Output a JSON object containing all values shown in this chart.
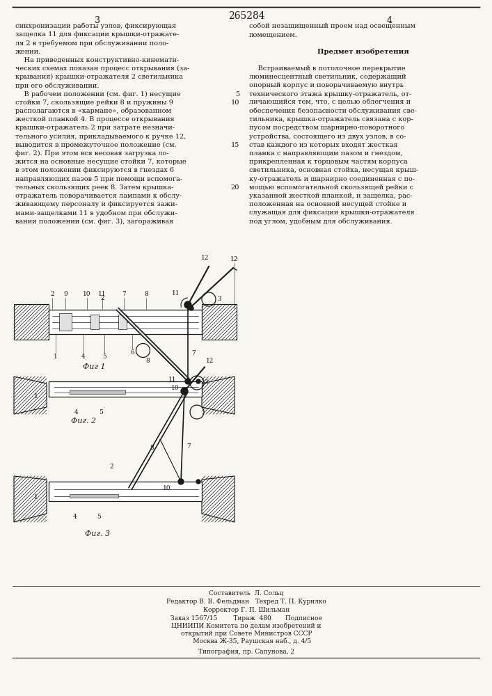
{
  "patent_number": "265284",
  "bg_color": "#f8f6f0",
  "text_color": "#1a1a1a",
  "col1_lines": [
    "синхронизации работы узлов, фиксирующая",
    "защелка 11 для фиксации крышки-отражате-",
    "ля 2 в требуемом при обслуживании поло-",
    "жении.",
    "    На приведенных конструктивно-кинемати-",
    "ческих схемах показан процесс открывания (за-",
    "крывания) крышки-отражателя 2 светильника",
    "при его обслуживании.",
    "    В рабочем положении (см. фиг. 1) несущие",
    "стойки 7, скользящие рейки 8 и пружины 9",
    "располагаются в «кармане», образованном",
    "жесткой планкой 4. В процессе открывания",
    "крышки-отражатель 2 при затрате незначи-",
    "тельного усилия, прикладываемого к ручке 12,",
    "выводится в промежуточное положение (см.",
    "фиг. 2). При этом вся весовая загрузка ло-",
    "жится на основные несущие стойки 7, которые",
    "в этом положении фиксируются в гнездах 6",
    "направляющих пазов 5 при помощи вспомога-",
    "тельных скользящих реек 8. Затем крышка-",
    "отражатель поворачивается лампами к обслу-",
    "живающему персоналу и фиксируется зажи-",
    "мами-защелками 11 в удобном при обслужи-",
    "вании положении (см. фиг. 3), загораживая"
  ],
  "col2_lines": [
    "собой незащищенный проем над освещенным",
    "помещением.",
    "",
    "Предмет изобретения",
    "",
    "    Встраиваемый в потолочное перекрытие",
    "люминесцентный светильник, содержащий",
    "опорный корпус и поворачиваемую внутрь",
    "технического этажа крышку-отражатель, от-",
    "личающийся тем, что, с целью облегчения и",
    "обеспечения безопасности обслуживания све-",
    "тильника, крышка-отражатель связана с кор-",
    "пусом посредством шарнирно-поворотного",
    "устройства, состоящего из двух узлов, в со-",
    "став каждого из которых входят жесткая",
    "планка с направляющим пазом и гнездом,",
    "прикрепленная к торцовым частям корпуса",
    "светильника, основная стойка, несущая крыш-",
    "ку-отражатель и шарнирно соединенная с по-",
    "мощью вспомогательной скользящей рейки с",
    "указанной жесткой планкой, и защелка, рас-",
    "положенная на основной несущей стойке и",
    "служащая для фиксации крышки-отражателя",
    "под углом, удобным для обслуживания."
  ],
  "line_num_rows": [
    8,
    9,
    14,
    19
  ],
  "line_nums": [
    "5",
    "10",
    "15",
    "20"
  ],
  "fig1_label": "Фиг 1",
  "fig2_label": "Фиг. 2",
  "fig3_label": "Фиг. 3",
  "bottom_lines": [
    "Составитель  Л. Сольц",
    "Редактор В. В. Фельдман   Техред Т. П. Курилко",
    "Корректор Г. П. Шильман"
  ],
  "pub_lines": [
    "Заказ 1567/15        Тираж  480       Подписное",
    "ЦНИИПИ Комитета по делам изобретений и",
    "открытий при Совете Министров СССР",
    "      Москва Ж-35, Раушская наб., д. 4/5"
  ],
  "typography": "Типография, пр. Сапунова, 2"
}
